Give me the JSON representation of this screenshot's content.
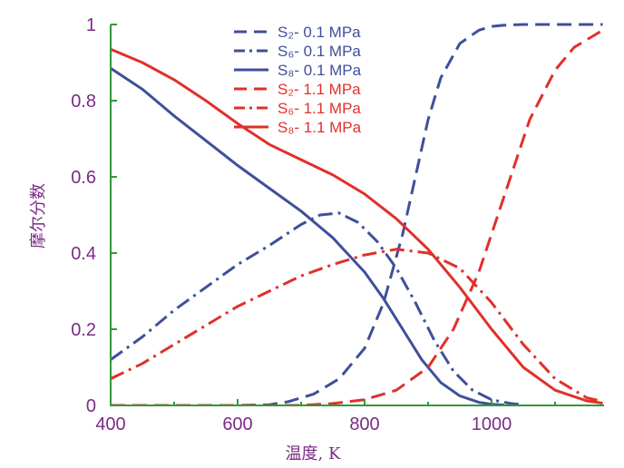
{
  "chart_data": {
    "type": "line",
    "xlabel": "温度, K",
    "ylabel": "摩尔分数",
    "xlim": [
      400,
      1180
    ],
    "ylim": [
      0,
      1
    ],
    "x_ticks": [
      "400",
      "600",
      "800",
      "1000"
    ],
    "y_ticks": [
      "0",
      "0.2",
      "0.4",
      "0.6",
      "0.8",
      "1"
    ],
    "grid": false,
    "legend_position": "top-center",
    "axis_color": "#2e9a3a",
    "series": [
      {
        "name": "S₂- 0.1 MPa",
        "color": "#3f4f9a",
        "dash": "dashed",
        "x": [
          400,
          600,
          650,
          680,
          720,
          760,
          800,
          830,
          860,
          880,
          900,
          920,
          950,
          980,
          1000,
          1020,
          1050,
          1100,
          1150,
          1175
        ],
        "y": [
          0,
          0,
          0.002,
          0.01,
          0.03,
          0.07,
          0.15,
          0.27,
          0.45,
          0.6,
          0.75,
          0.86,
          0.95,
          0.985,
          0.995,
          0.998,
          1.0,
          1.0,
          1.0,
          1.0
        ]
      },
      {
        "name": "S₆- 0.1 MPa",
        "color": "#3f4f9a",
        "dash": "dashdot",
        "x": [
          400,
          450,
          500,
          550,
          600,
          650,
          700,
          730,
          760,
          790,
          820,
          850,
          880,
          910,
          940,
          970,
          1000,
          1030,
          1050
        ],
        "y": [
          0.12,
          0.18,
          0.25,
          0.31,
          0.37,
          0.42,
          0.475,
          0.5,
          0.505,
          0.48,
          0.43,
          0.36,
          0.27,
          0.17,
          0.09,
          0.04,
          0.015,
          0.005,
          0.002
        ]
      },
      {
        "name": "S₈- 0.1 MPa",
        "color": "#3f4f9a",
        "dash": "solid",
        "x": [
          400,
          450,
          500,
          550,
          600,
          650,
          700,
          750,
          800,
          830,
          860,
          890,
          920,
          950,
          980,
          1000,
          1020
        ],
        "y": [
          0.885,
          0.83,
          0.76,
          0.695,
          0.63,
          0.57,
          0.51,
          0.44,
          0.35,
          0.28,
          0.2,
          0.12,
          0.06,
          0.025,
          0.008,
          0.003,
          0.001
        ]
      },
      {
        "name": "S₂- 1.1 MPa",
        "color": "#e0302a",
        "dash": "dashed",
        "x": [
          400,
          700,
          750,
          800,
          850,
          900,
          940,
          980,
          1020,
          1060,
          1100,
          1130,
          1160,
          1175
        ],
        "y": [
          0,
          0,
          0.005,
          0.015,
          0.04,
          0.1,
          0.2,
          0.35,
          0.55,
          0.75,
          0.88,
          0.94,
          0.97,
          0.985
        ]
      },
      {
        "name": "S₆- 1.1 MPa",
        "color": "#e0302a",
        "dash": "dashdot",
        "x": [
          400,
          450,
          500,
          550,
          600,
          650,
          700,
          750,
          800,
          850,
          900,
          950,
          1000,
          1050,
          1100,
          1150,
          1175
        ],
        "y": [
          0.07,
          0.11,
          0.16,
          0.21,
          0.26,
          0.3,
          0.34,
          0.37,
          0.395,
          0.41,
          0.4,
          0.36,
          0.27,
          0.16,
          0.07,
          0.02,
          0.01
        ]
      },
      {
        "name": "S₈- 1.1 MPa",
        "color": "#e0302a",
        "dash": "solid",
        "x": [
          400,
          450,
          500,
          550,
          600,
          650,
          700,
          750,
          800,
          850,
          900,
          950,
          1000,
          1050,
          1100,
          1150,
          1175
        ],
        "y": [
          0.935,
          0.9,
          0.855,
          0.8,
          0.74,
          0.685,
          0.645,
          0.605,
          0.555,
          0.49,
          0.41,
          0.31,
          0.2,
          0.1,
          0.04,
          0.012,
          0.006
        ]
      }
    ]
  }
}
